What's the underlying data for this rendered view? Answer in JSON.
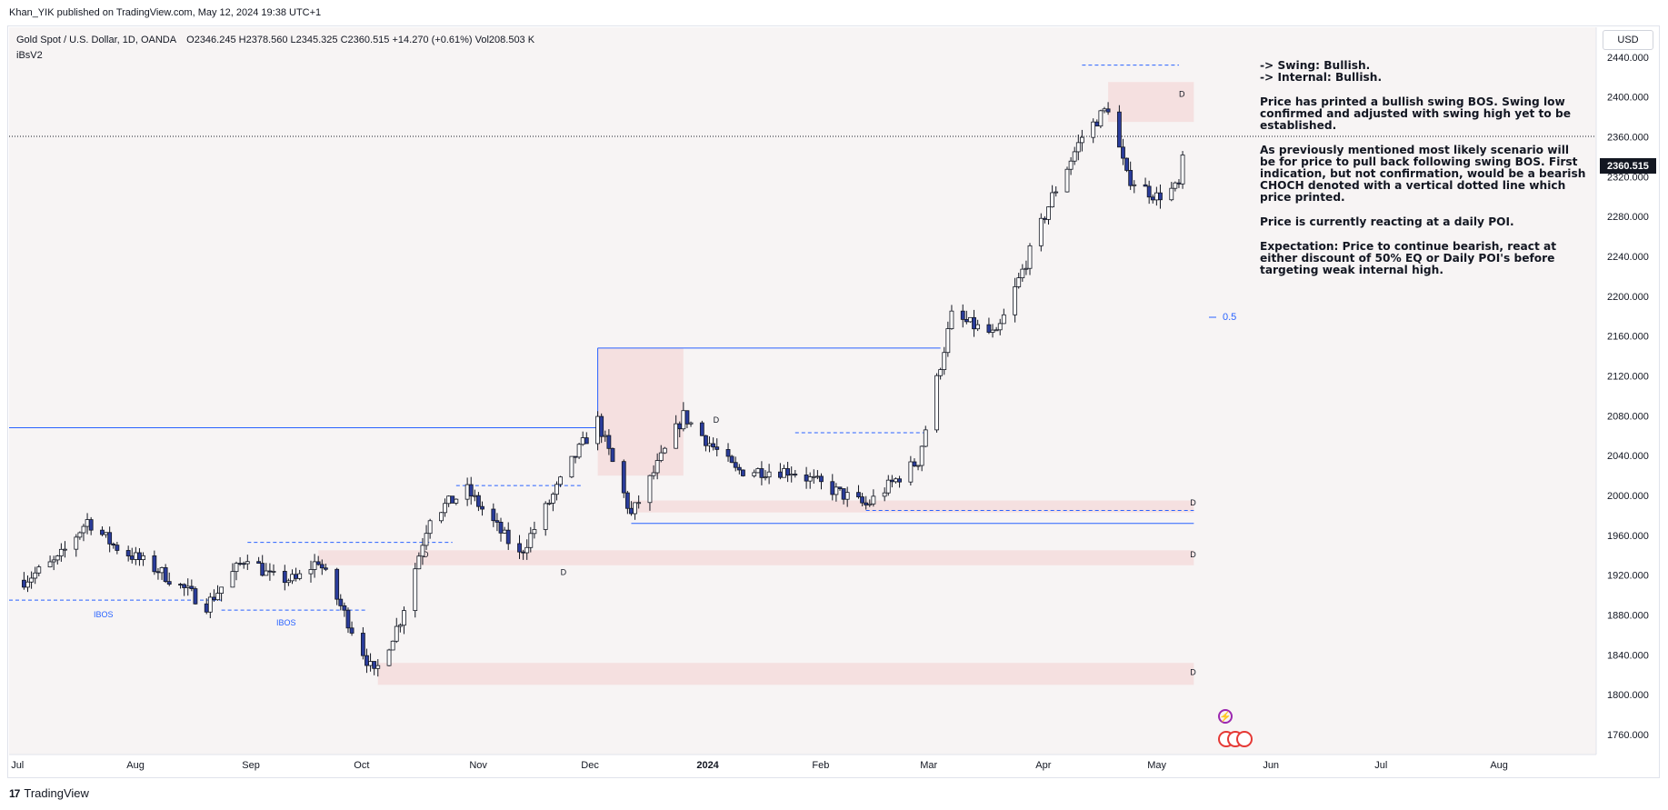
{
  "header": {
    "published": "Khan_YIK published on TradingView.com, May 12, 2024 19:38 UTC+1"
  },
  "legend": {
    "symbol": "Gold Spot / U.S. Dollar, 1D, OANDA",
    "open": "O2346.245",
    "high": "H2378.560",
    "low": "L2345.325",
    "close": "C2360.515",
    "change": "+14.270 (+0.61%)",
    "volume": "Vol208.503 K",
    "indicator": "iBsV2"
  },
  "currency_button": "USD",
  "last_price_badge": "2360.515",
  "annotations": {
    "fib_label": "0.5",
    "ibos_1": "IBOS",
    "ibos_2": "IBOS",
    "daily_marker": "D"
  },
  "note": {
    "line1": "-> Swing: Bullish.",
    "line2": "-> Internal: Bullish.",
    "para1": "Price has printed a bullish swing BOS.  Swing low confirmed and adjusted with swing high yet to be established.",
    "para2": "As previously mentioned most likely scenario will be for price to pull back following swing BOS. First indication, but not confirmation, would be a bearish CHOCH denoted with a vertical dotted line which price printed.",
    "para3": "Price is currently reacting at a daily POI.",
    "para4": "Expectation: Price to continue bearish, react at either discount of 50% EQ or Daily POI's before targeting weak internal high."
  },
  "footer": {
    "brand": "TradingView",
    "logo_text": "17"
  },
  "colors": {
    "up": "#ffffff",
    "down": "#2a3c9b",
    "wick": "#131722",
    "zone": "#f5dcdc",
    "line": "#2962ff"
  },
  "chart_data": {
    "type": "candlestick",
    "title": "Gold Spot / U.S. Dollar, 1D, OANDA",
    "x_ticks": [
      "Jul",
      "Aug",
      "Sep",
      "Oct",
      "Nov",
      "Dec",
      "2024",
      "Feb",
      "Mar",
      "Apr",
      "May",
      "Jun",
      "Jul",
      "Aug"
    ],
    "y_ticks": [
      2440,
      2400,
      2360,
      2320,
      2280,
      2240,
      2200,
      2160,
      2120,
      2080,
      2040,
      2000,
      1960,
      1920,
      1880,
      1840,
      1800,
      1760
    ],
    "ylim": [
      1740,
      2470
    ],
    "last_price": 2360.515,
    "waypoints": [
      {
        "date": "2023-07-03",
        "price": 1915
      },
      {
        "date": "2023-07-12",
        "price": 1935
      },
      {
        "date": "2023-07-20",
        "price": 1975
      },
      {
        "date": "2023-07-27",
        "price": 1950
      },
      {
        "date": "2023-08-08",
        "price": 1925
      },
      {
        "date": "2023-08-21",
        "price": 1890
      },
      {
        "date": "2023-09-01",
        "price": 1940
      },
      {
        "date": "2023-09-07",
        "price": 1918
      },
      {
        "date": "2023-09-14",
        "price": 1915
      },
      {
        "date": "2023-09-20",
        "price": 1935
      },
      {
        "date": "2023-10-05",
        "price": 1820
      },
      {
        "date": "2023-10-12",
        "price": 1875
      },
      {
        "date": "2023-10-20",
        "price": 1980
      },
      {
        "date": "2023-10-30",
        "price": 2005
      },
      {
        "date": "2023-11-13",
        "price": 1940
      },
      {
        "date": "2023-11-28",
        "price": 2040
      },
      {
        "date": "2023-12-04",
        "price": 2075
      },
      {
        "date": "2023-12-13",
        "price": 1980
      },
      {
        "date": "2023-12-27",
        "price": 2080
      },
      {
        "date": "2024-01-10",
        "price": 2025
      },
      {
        "date": "2024-01-25",
        "price": 2025
      },
      {
        "date": "2024-02-14",
        "price": 1990
      },
      {
        "date": "2024-02-28",
        "price": 2035
      },
      {
        "date": "2024-03-08",
        "price": 2180
      },
      {
        "date": "2024-03-20",
        "price": 2160
      },
      {
        "date": "2024-04-04",
        "price": 2300
      },
      {
        "date": "2024-04-12",
        "price": 2360
      },
      {
        "date": "2024-04-19",
        "price": 2390
      },
      {
        "date": "2024-04-24",
        "price": 2320
      },
      {
        "date": "2024-05-02",
        "price": 2300
      },
      {
        "date": "2024-05-08",
        "price": 2310
      },
      {
        "date": "2024-05-10",
        "price": 2360
      }
    ],
    "levels": [
      {
        "name": "prior-high-line",
        "price": 2068
      },
      {
        "name": "swing-low-line",
        "price": 1972
      },
      {
        "name": "range-high-line",
        "price": 2148
      },
      {
        "name": "current-price-line",
        "price": 2360.515
      }
    ],
    "zones": [
      {
        "name": "supply-zone-top",
        "from": "2024-04-19",
        "to": "2024-05-12",
        "low": 2375,
        "high": 2415
      },
      {
        "name": "range-zone-dec",
        "from": "2023-12-04",
        "to": "2023-12-27",
        "low": 2020,
        "high": 2148
      },
      {
        "name": "demand-zone-2000",
        "from": "2023-12-13",
        "to": "2024-05-12",
        "low": 1983,
        "high": 1995
      },
      {
        "name": "demand-zone-1935",
        "from": "2023-09-20",
        "to": "2024-05-12",
        "low": 1930,
        "high": 1945
      },
      {
        "name": "demand-zone-1820",
        "from": "2023-10-06",
        "to": "2024-05-12",
        "low": 1810,
        "high": 1832
      }
    ]
  }
}
